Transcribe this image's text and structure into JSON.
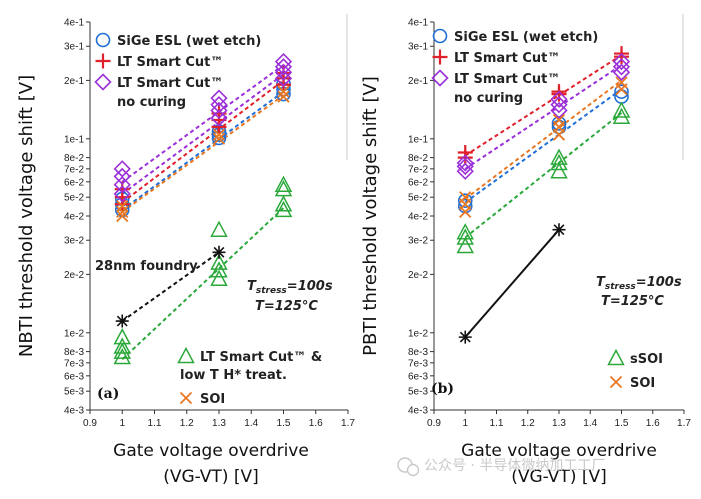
{
  "chart_data": [
    {
      "type": "scatter",
      "panel": "(a)",
      "ylabel": "NBTI threshold voltage shift [V]",
      "xlabel_line1": "Gate voltage overdrive",
      "xlabel_line2": "(VG-VT) [V]",
      "yscale": "log",
      "xlim": [
        0.9,
        1.7
      ],
      "ylim": [
        0.004,
        0.4
      ],
      "xticks": [
        "0.9",
        "1",
        "1.1",
        "1.2",
        "1.3",
        "1.4",
        "1.5",
        "1.6",
        "1.7"
      ],
      "yticks": [
        {
          "v": 0.4,
          "label": "4e-1"
        },
        {
          "v": 0.3,
          "label": "3e-1"
        },
        {
          "v": 0.2,
          "label": "2e-1"
        },
        {
          "v": 0.1,
          "label": "1e-1"
        },
        {
          "v": 0.08,
          "label": "8e-2"
        },
        {
          "v": 0.07,
          "label": "7e-2"
        },
        {
          "v": 0.06,
          "label": "6e-2"
        },
        {
          "v": 0.05,
          "label": "5e-2"
        },
        {
          "v": 0.04,
          "label": "4e-2"
        },
        {
          "v": 0.03,
          "label": "3e-2"
        },
        {
          "v": 0.02,
          "label": "2e-2"
        },
        {
          "v": 0.01,
          "label": "1e-2"
        },
        {
          "v": 0.008,
          "label": "8e-3"
        },
        {
          "v": 0.007,
          "label": "7e-3"
        },
        {
          "v": 0.006,
          "label": "6e-3"
        },
        {
          "v": 0.005,
          "label": "5e-3"
        },
        {
          "v": 0.004,
          "label": "4e-3"
        }
      ],
      "series": [
        {
          "name": "SiGe ESL (wet etch)",
          "marker": "circle",
          "color": "#1f6fd6",
          "points": [
            [
              1,
              0.043
            ],
            [
              1,
              0.046
            ],
            [
              1,
              0.049
            ],
            [
              1.3,
              0.101
            ],
            [
              1.3,
              0.105
            ],
            [
              1.3,
              0.109
            ],
            [
              1.5,
              0.17
            ],
            [
              1.5,
              0.18
            ],
            [
              1.5,
              0.192
            ]
          ],
          "fits": [
            [
              [
                1,
                0.043
              ],
              [
                1.5,
                0.175
              ]
            ]
          ]
        },
        {
          "name": "LT Smart Cut™",
          "marker": "plus",
          "color": "#e0202a",
          "points": [
            [
              1,
              0.046
            ],
            [
              1,
              0.05
            ],
            [
              1,
              0.055
            ],
            [
              1.3,
              0.115
            ],
            [
              1.3,
              0.125
            ],
            [
              1.3,
              0.135
            ],
            [
              1.5,
              0.19
            ],
            [
              1.5,
              0.205
            ],
            [
              1.5,
              0.218
            ]
          ],
          "fits": [
            [
              [
                1,
                0.047
              ],
              [
                1.5,
                0.2
              ]
            ]
          ]
        },
        {
          "name": "LT Smart Cut™ no curing",
          "legend_line1": "LT Smart Cut™",
          "legend_line2": "no curing",
          "marker": "diamond",
          "color": "#9b30d9",
          "points": [
            [
              1,
              0.052
            ],
            [
              1,
              0.058
            ],
            [
              1,
              0.064
            ],
            [
              1,
              0.07
            ],
            [
              1.3,
              0.128
            ],
            [
              1.3,
              0.14
            ],
            [
              1.3,
              0.15
            ],
            [
              1.3,
              0.162
            ],
            [
              1.5,
              0.205
            ],
            [
              1.5,
              0.22
            ],
            [
              1.5,
              0.235
            ],
            [
              1.5,
              0.25
            ]
          ],
          "fits": [
            [
              [
                1,
                0.052
              ],
              [
                1.5,
                0.215
              ]
            ],
            [
              [
                1,
                0.06
              ],
              [
                1.5,
                0.24
              ]
            ]
          ]
        },
        {
          "name": "SOI",
          "marker": "x",
          "color": "#e87722",
          "points": [
            [
              1,
              0.04
            ],
            [
              1,
              0.042
            ],
            [
              1,
              0.045
            ],
            [
              1.3,
              0.1
            ],
            [
              1.3,
              0.105
            ],
            [
              1.5,
              0.165
            ],
            [
              1.5,
              0.175
            ]
          ],
          "fits": [
            [
              [
                1,
                0.042
              ],
              [
                1.5,
                0.168
              ]
            ]
          ]
        },
        {
          "name": "LT Smart Cut™ & low T H* treat.",
          "legend_line1": "LT Smart Cut™ &",
          "legend_line2": "low T H* treat.",
          "marker": "triangle",
          "color": "#2aa83a",
          "points": [
            [
              1,
              0.0075
            ],
            [
              1,
              0.008
            ],
            [
              1,
              0.0085
            ],
            [
              1,
              0.0095
            ],
            [
              1.3,
              0.019
            ],
            [
              1.3,
              0.021
            ],
            [
              1.3,
              0.023
            ],
            [
              1.3,
              0.034
            ],
            [
              1.5,
              0.043
            ],
            [
              1.5,
              0.046
            ],
            [
              1.5,
              0.055
            ],
            [
              1.5,
              0.058
            ]
          ],
          "fits": [
            [
              [
                1,
                0.0073
              ],
              [
                1.5,
                0.044
              ]
            ]
          ]
        },
        {
          "name": "28nm foundry",
          "marker": "asterisk",
          "color": "#111111",
          "points": [
            [
              1,
              0.0115
            ],
            [
              1.3,
              0.026
            ]
          ],
          "fits": [
            [
              [
                1,
                0.0115
              ],
              [
                1.3,
                0.026
              ]
            ]
          ]
        }
      ],
      "legend_top": [
        "SiGe ESL (wet etch)",
        "LT Smart Cut™",
        "LT Smart Cut™ no curing"
      ],
      "legend_bottom": [
        "LT Smart Cut™ & low T H* treat.",
        "SOI"
      ],
      "annotations": {
        "foundry": "28nm foundry",
        "tstress": "T",
        "tstress_sub": "stress",
        "tstress_val": "=100s",
        "temp": "T=125°C"
      }
    },
    {
      "type": "scatter",
      "panel": "(b)",
      "ylabel": "PBTI threshold voltage shift [V]",
      "xlabel_line1": "Gate voltage overdrive",
      "xlabel_line2": "(VG-VT) [V]",
      "yscale": "log",
      "xlim": [
        0.9,
        1.7
      ],
      "ylim": [
        0.004,
        0.4
      ],
      "xticks": [
        "0.9",
        "1",
        "1.1",
        "1.2",
        "1.3",
        "1.4",
        "1.5",
        "1.6",
        "1.7"
      ],
      "yticks": [
        {
          "v": 0.4,
          "label": "4e-1"
        },
        {
          "v": 0.3,
          "label": "3e-1"
        },
        {
          "v": 0.2,
          "label": "2e-1"
        },
        {
          "v": 0.1,
          "label": "1e-1"
        },
        {
          "v": 0.08,
          "label": "8e-2"
        },
        {
          "v": 0.07,
          "label": "7e-2"
        },
        {
          "v": 0.06,
          "label": "6e-2"
        },
        {
          "v": 0.05,
          "label": "5e-2"
        },
        {
          "v": 0.04,
          "label": "4e-2"
        },
        {
          "v": 0.03,
          "label": "3e-2"
        },
        {
          "v": 0.02,
          "label": "2e-2"
        },
        {
          "v": 0.01,
          "label": "1e-2"
        },
        {
          "v": 0.008,
          "label": "8e-3"
        },
        {
          "v": 0.007,
          "label": "7e-3"
        },
        {
          "v": 0.006,
          "label": "6e-3"
        },
        {
          "v": 0.005,
          "label": "5e-3"
        },
        {
          "v": 0.004,
          "label": "4e-3"
        }
      ],
      "series": [
        {
          "name": "SiGe ESL (wet etch)",
          "marker": "circle",
          "color": "#1f6fd6",
          "points": [
            [
              1,
              0.045
            ],
            [
              1,
              0.048
            ],
            [
              1.3,
              0.115
            ],
            [
              1.3,
              0.12
            ],
            [
              1.5,
              0.165
            ],
            [
              1.5,
              0.175
            ]
          ],
          "fits": [
            [
              [
                1,
                0.047
              ],
              [
                1.5,
                0.18
              ]
            ]
          ]
        },
        {
          "name": "LT Smart Cut™",
          "marker": "plus",
          "color": "#e0202a",
          "points": [
            [
              1,
              0.08
            ],
            [
              1,
              0.085
            ],
            [
              1.3,
              0.17
            ],
            [
              1.3,
              0.175
            ],
            [
              1.5,
              0.265
            ],
            [
              1.5,
              0.275
            ]
          ],
          "fits": [
            [
              [
                1,
                0.082
              ],
              [
                1.5,
                0.27
              ]
            ]
          ]
        },
        {
          "name": "LT Smart Cut™ no curing",
          "legend_line1": "LT Smart Cut™",
          "legend_line2": "no curing",
          "marker": "diamond",
          "color": "#9b30d9",
          "points": [
            [
              1,
              0.068
            ],
            [
              1,
              0.072
            ],
            [
              1,
              0.075
            ],
            [
              1.3,
              0.14
            ],
            [
              1.3,
              0.15
            ],
            [
              1.3,
              0.16
            ],
            [
              1.5,
              0.22
            ],
            [
              1.5,
              0.235
            ],
            [
              1.5,
              0.25
            ]
          ],
          "fits": [
            [
              [
                1,
                0.07
              ],
              [
                1.5,
                0.24
              ]
            ]
          ]
        },
        {
          "name": "SOI",
          "marker": "x",
          "color": "#e87722",
          "points": [
            [
              1,
              0.042
            ],
            [
              1,
              0.046
            ],
            [
              1,
              0.05
            ],
            [
              1.3,
              0.105
            ],
            [
              1.3,
              0.115
            ],
            [
              1.3,
              0.125
            ],
            [
              1.5,
              0.18
            ],
            [
              1.5,
              0.195
            ]
          ],
          "fits": [
            [
              [
                1,
                0.049
              ],
              [
                1.5,
                0.2
              ]
            ]
          ]
        },
        {
          "name": "sSOI",
          "marker": "triangle",
          "color": "#2aa83a",
          "points": [
            [
              1,
              0.028
            ],
            [
              1,
              0.031
            ],
            [
              1,
              0.033
            ],
            [
              1.3,
              0.068
            ],
            [
              1.3,
              0.075
            ],
            [
              1.3,
              0.08
            ],
            [
              1.5,
              0.13
            ],
            [
              1.5,
              0.14
            ]
          ],
          "fits": [
            [
              [
                1,
                0.031
              ],
              [
                1.5,
                0.136
              ]
            ]
          ]
        },
        {
          "name": "28nm foundry",
          "marker": "asterisk",
          "color": "#111111",
          "points": [
            [
              1,
              0.0095
            ],
            [
              1.3,
              0.034
            ]
          ],
          "fits": [
            [
              [
                1,
                0.0095
              ],
              [
                1.3,
                0.034
              ]
            ]
          ],
          "solid": true
        }
      ],
      "legend_top": [
        "SiGe ESL (wet etch)",
        "LT Smart Cut™",
        "LT Smart Cut™ no curing"
      ],
      "legend_bottom": [
        "sSOI",
        "SOI"
      ],
      "annotations": {
        "tstress": "T",
        "tstress_sub": "stress",
        "tstress_val": "=100s",
        "temp": "T=125°C"
      }
    }
  ],
  "watermark": "公众号 · 半导体微纳加工工厂"
}
